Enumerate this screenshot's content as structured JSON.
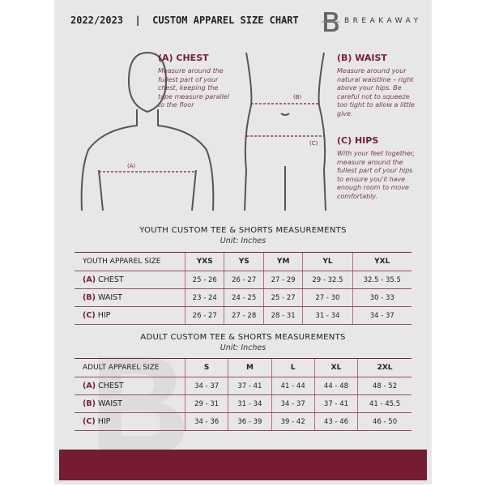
{
  "header": {
    "title": "2022/2023  |  CUSTOM APPAREL SIZE CHART",
    "brand": "BREAKAWAY",
    "logo_letter": "B"
  },
  "colors": {
    "accent": "#7a1f35",
    "background": "#e7e7e9"
  },
  "measures": {
    "chest": {
      "heading": "(A) CHEST",
      "text": "Measure around the fullest part of your chest, keeping the tape measure parallel to the floor",
      "marker": "(A)"
    },
    "waist": {
      "heading": "(B) WAIST",
      "text": "Measure around your natural waistline – right above your hips. Be careful not to squeeze too tight to allow a little give.",
      "marker": "(B)"
    },
    "hips": {
      "heading": "(C) HIPS",
      "text": "With your feet together, measure around the fullest part of your hips to ensure you'll have enough room to move comfortably.",
      "marker": "(C)"
    }
  },
  "youth": {
    "title": "YOUTH CUSTOM TEE & SHORTS MEASUREMENTS",
    "unit": "Unit: Inches",
    "header": [
      "YOUTH APPAREL SIZE",
      "YXS",
      "YS",
      "YM",
      "YL",
      "YXL"
    ],
    "rows": [
      {
        "code": "(A)",
        "name": "CHEST",
        "values": [
          "25 - 26",
          "26 - 27",
          "27 - 29",
          "29 - 32.5",
          "32.5 - 35.5"
        ]
      },
      {
        "code": "(B)",
        "name": "WAIST",
        "values": [
          "23 - 24",
          "24 - 25",
          "25 - 27",
          "27 - 30",
          "30 - 33"
        ]
      },
      {
        "code": "(C)",
        "name": "HIP",
        "values": [
          "26 - 27",
          "27 - 28",
          "28 - 31",
          "31 - 34",
          "34 - 37"
        ]
      }
    ]
  },
  "adult": {
    "title": "ADULT CUSTOM TEE & SHORTS MEASUREMENTS",
    "unit": "Unit: Inches",
    "header": [
      "ADULT APPAREL SIZE",
      "S",
      "M",
      "L",
      "XL",
      "2XL"
    ],
    "rows": [
      {
        "code": "(A)",
        "name": "CHEST",
        "values": [
          "34 - 37",
          "37 - 41",
          "41 - 44",
          "44 - 48",
          "48 - 52"
        ]
      },
      {
        "code": "(B)",
        "name": "WAIST",
        "values": [
          "29 - 31",
          "31 - 34",
          "34 - 37",
          "37 - 41",
          "41 - 45.5"
        ]
      },
      {
        "code": "(C)",
        "name": "HIP",
        "values": [
          "34 - 36",
          "36 - 39",
          "39 - 42",
          "43 - 46",
          "46 - 50"
        ]
      }
    ]
  }
}
